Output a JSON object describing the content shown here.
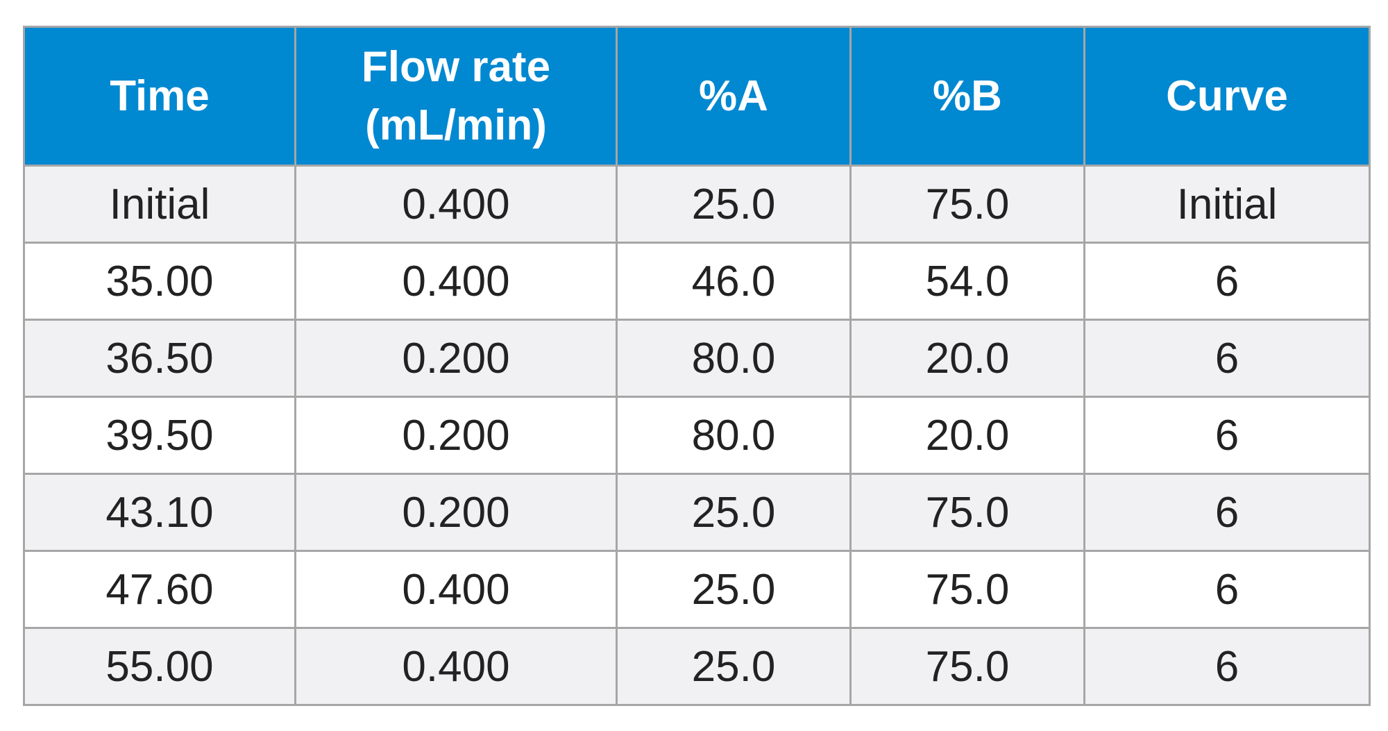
{
  "table": {
    "headers": {
      "time": "Time",
      "flow_rate_line1": "Flow rate",
      "flow_rate_line2": "(mL/min)",
      "percent_a": "%A",
      "percent_b": "%B",
      "curve": "Curve"
    },
    "rows": [
      {
        "time": "Initial",
        "flow": "0.400",
        "a": "25.0",
        "b": "75.0",
        "curve": "Initial"
      },
      {
        "time": "35.00",
        "flow": "0.400",
        "a": "46.0",
        "b": "54.0",
        "curve": "6"
      },
      {
        "time": "36.50",
        "flow": "0.200",
        "a": "80.0",
        "b": "20.0",
        "curve": "6"
      },
      {
        "time": "39.50",
        "flow": "0.200",
        "a": "80.0",
        "b": "20.0",
        "curve": "6"
      },
      {
        "time": "43.10",
        "flow": "0.200",
        "a": "25.0",
        "b": "75.0",
        "curve": "6"
      },
      {
        "time": "47.60",
        "flow": "0.400",
        "a": "25.0",
        "b": "75.0",
        "curve": "6"
      },
      {
        "time": "55.00",
        "flow": "0.400",
        "a": "25.0",
        "b": "75.0",
        "curve": "6"
      }
    ],
    "colors": {
      "header_bg": "#0088d1",
      "header_text": "#ffffff",
      "row_alt_bg": "#f1f1f3",
      "border": "#a6a6a6"
    }
  }
}
